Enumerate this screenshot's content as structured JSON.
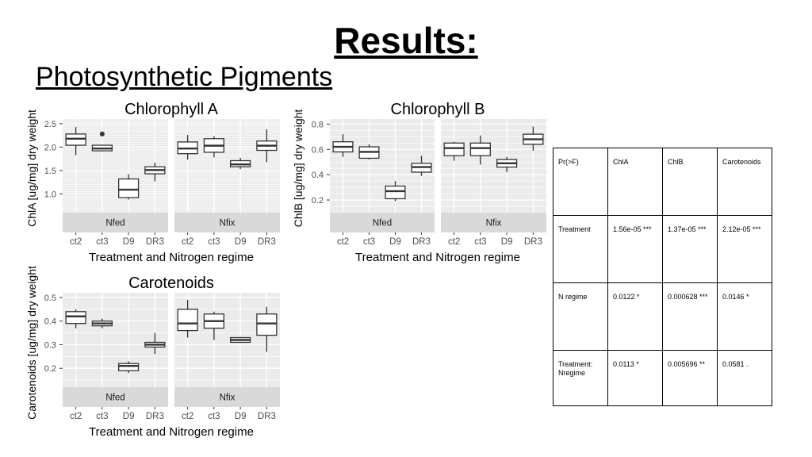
{
  "slide": {
    "title": "Results:",
    "subtitle": "Photosynthetic Pigments"
  },
  "chart_data": [
    {
      "type": "boxplot",
      "title": "Chlorophyll A",
      "ylabel": "ChlA [ug/mg] dry weight",
      "xlabel": "Treatment and Nitrogen regime",
      "ylim": [
        0.6,
        2.6
      ],
      "yticks": [
        1.0,
        1.5,
        2.0,
        2.5
      ],
      "categories": [
        "ct2",
        "ct3",
        "D9",
        "DR3"
      ],
      "panels": [
        {
          "name": "Nfed",
          "boxes": [
            {
              "lo": 1.83,
              "q1": 2.04,
              "med": 2.18,
              "q3": 2.28,
              "hi": 2.43
            },
            {
              "lo": 1.92,
              "q1": 1.92,
              "med": 1.97,
              "q3": 2.04,
              "hi": 2.04,
              "outliers": [
                2.28
              ]
            },
            {
              "lo": 0.88,
              "q1": 0.92,
              "med": 1.09,
              "q3": 1.32,
              "hi": 1.42
            },
            {
              "lo": 1.27,
              "q1": 1.43,
              "med": 1.51,
              "q3": 1.58,
              "hi": 1.67
            }
          ]
        },
        {
          "name": "Nfix",
          "boxes": [
            {
              "lo": 1.73,
              "q1": 1.86,
              "med": 1.97,
              "q3": 2.11,
              "hi": 2.26
            },
            {
              "lo": 1.78,
              "q1": 1.89,
              "med": 2.03,
              "q3": 2.18,
              "hi": 2.23
            },
            {
              "lo": 1.53,
              "q1": 1.58,
              "med": 1.63,
              "q3": 1.71,
              "hi": 1.77
            },
            {
              "lo": 1.68,
              "q1": 1.93,
              "med": 2.03,
              "q3": 2.13,
              "hi": 2.38
            }
          ]
        }
      ]
    },
    {
      "type": "boxplot",
      "title": "Chlorophyll B",
      "ylabel": "ChlB [ug/mg] dry weight",
      "xlabel": "Treatment and Nitrogen regime",
      "ylim": [
        0.1,
        0.84
      ],
      "yticks": [
        0.2,
        0.4,
        0.6,
        0.8
      ],
      "categories": [
        "ct2",
        "ct3",
        "D9",
        "DR3"
      ],
      "panels": [
        {
          "name": "Nfed",
          "boxes": [
            {
              "lo": 0.54,
              "q1": 0.58,
              "med": 0.62,
              "q3": 0.66,
              "hi": 0.72
            },
            {
              "lo": 0.52,
              "q1": 0.53,
              "med": 0.58,
              "q3": 0.62,
              "hi": 0.64
            },
            {
              "lo": 0.19,
              "q1": 0.21,
              "med": 0.27,
              "q3": 0.31,
              "hi": 0.35
            },
            {
              "lo": 0.39,
              "q1": 0.42,
              "med": 0.46,
              "q3": 0.49,
              "hi": 0.55
            }
          ]
        },
        {
          "name": "Nfix",
          "boxes": [
            {
              "lo": 0.51,
              "q1": 0.55,
              "med": 0.61,
              "q3": 0.65,
              "hi": 0.66
            },
            {
              "lo": 0.48,
              "q1": 0.55,
              "med": 0.61,
              "q3": 0.65,
              "hi": 0.71
            },
            {
              "lo": 0.42,
              "q1": 0.46,
              "med": 0.49,
              "q3": 0.52,
              "hi": 0.54
            },
            {
              "lo": 0.59,
              "q1": 0.64,
              "med": 0.68,
              "q3": 0.72,
              "hi": 0.78
            }
          ]
        }
      ]
    },
    {
      "type": "boxplot",
      "title": "Carotenoids",
      "ylabel": "Carotenoids [ug/mg] dry weight",
      "xlabel": "Treatment and Nitrogen regime",
      "ylim": [
        0.12,
        0.52
      ],
      "yticks": [
        0.2,
        0.3,
        0.4,
        0.5
      ],
      "categories": [
        "ct2",
        "ct3",
        "D9",
        "DR3"
      ],
      "panels": [
        {
          "name": "Nfed",
          "boxes": [
            {
              "lo": 0.37,
              "q1": 0.39,
              "med": 0.42,
              "q3": 0.44,
              "hi": 0.45
            },
            {
              "lo": 0.37,
              "q1": 0.38,
              "med": 0.39,
              "q3": 0.4,
              "hi": 0.41
            },
            {
              "lo": 0.18,
              "q1": 0.19,
              "med": 0.21,
              "q3": 0.22,
              "hi": 0.23
            },
            {
              "lo": 0.26,
              "q1": 0.29,
              "med": 0.3,
              "q3": 0.31,
              "hi": 0.35
            }
          ]
        },
        {
          "name": "Nfix",
          "boxes": [
            {
              "lo": 0.33,
              "q1": 0.36,
              "med": 0.39,
              "q3": 0.45,
              "hi": 0.49
            },
            {
              "lo": 0.32,
              "q1": 0.37,
              "med": 0.4,
              "q3": 0.43,
              "hi": 0.44
            },
            {
              "lo": 0.31,
              "q1": 0.31,
              "med": 0.32,
              "q3": 0.33,
              "hi": 0.33
            },
            {
              "lo": 0.27,
              "q1": 0.34,
              "med": 0.39,
              "q3": 0.43,
              "hi": 0.46
            }
          ]
        }
      ]
    }
  ],
  "anova_table": {
    "header": [
      "Pr(>F)",
      "ChlA",
      "ChlB",
      "Carotenoids"
    ],
    "rows": [
      [
        "Treatment",
        "1.56e-05 ***",
        "1.37e-05 ***",
        "2.12e-05 ***"
      ],
      [
        "N regime",
        "0.0122 *",
        "0.000628 ***",
        "0.0146 *"
      ],
      [
        "Treatment: Nregime",
        "0.0113 *",
        "0.005696 **",
        "0.0581 ."
      ]
    ]
  }
}
